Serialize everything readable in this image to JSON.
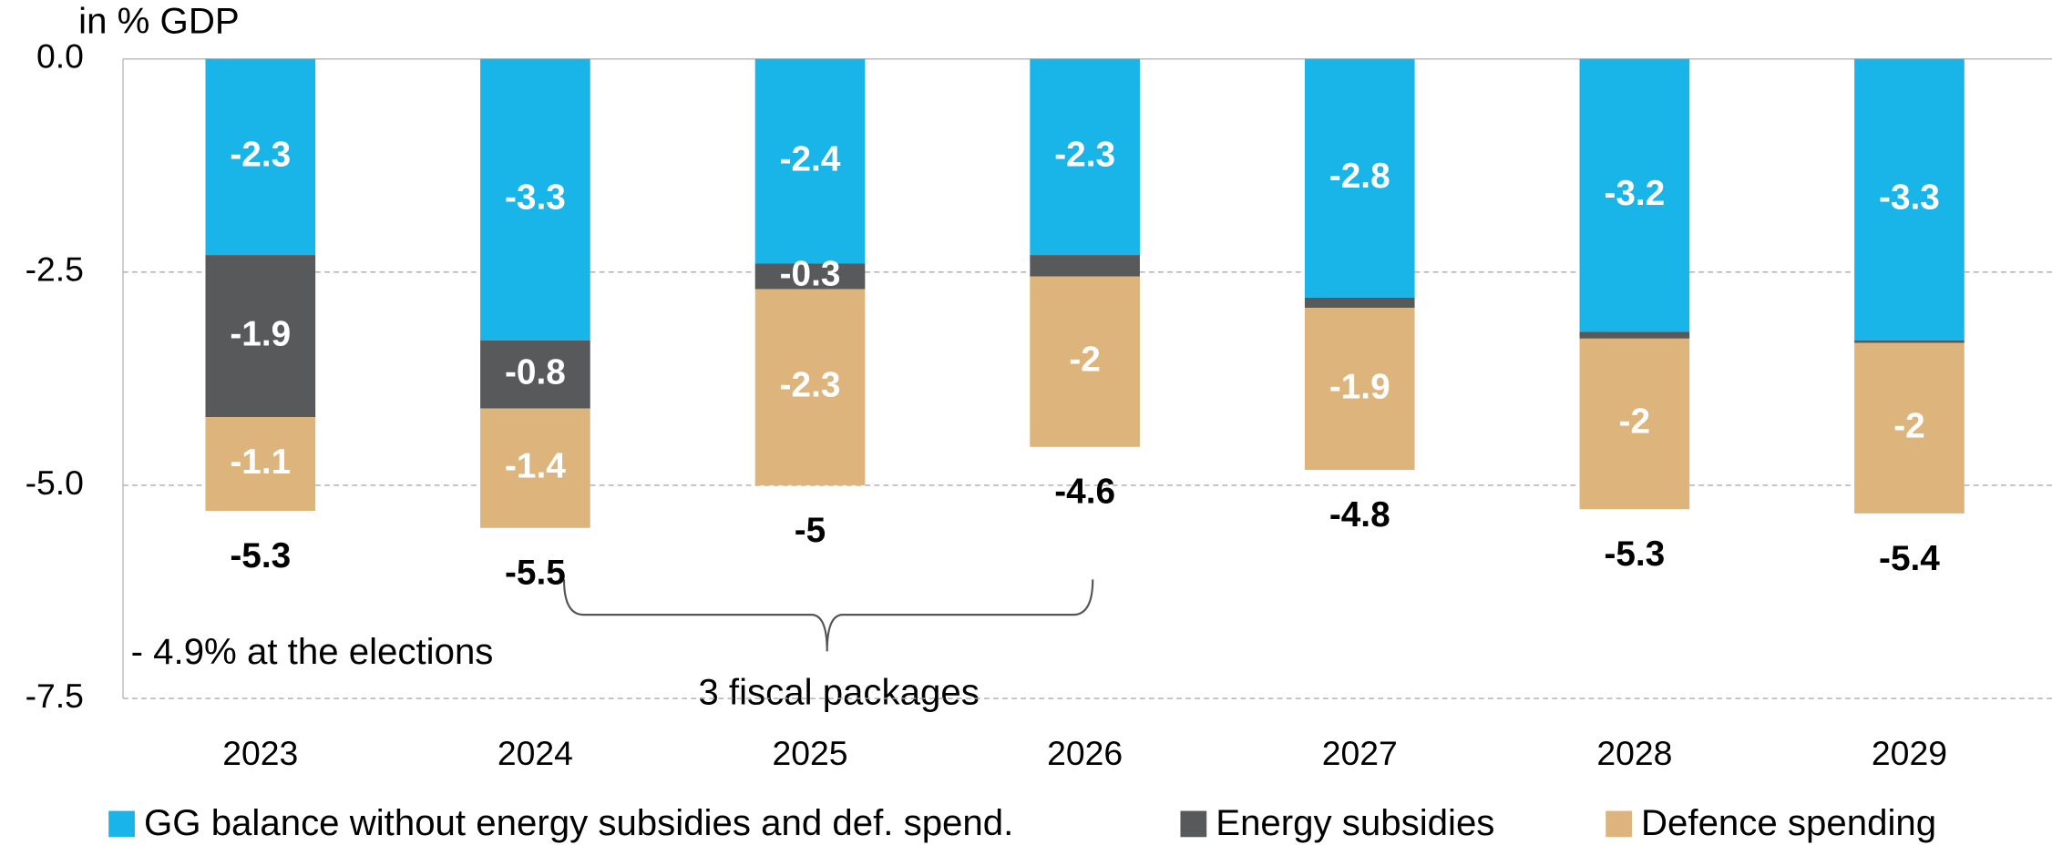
{
  "chart_data": {
    "type": "stacked_bar",
    "y_label": "in % GDP",
    "categories": [
      "2023",
      "2024",
      "2025",
      "2026",
      "2027",
      "2028",
      "2029"
    ],
    "series": [
      {
        "name": "GG balance without energy subsidies and def. spend.",
        "color": "#19b4e8",
        "values": [
          -2.3,
          -3.3,
          -2.4,
          -2.3,
          -2.8,
          -3.2,
          -3.3
        ]
      },
      {
        "name": "Energy subsidies",
        "color": "#58595b",
        "values": [
          -1.9,
          -0.8,
          -0.3,
          -0.25,
          -0.12,
          -0.08,
          -0.03
        ],
        "value_labels": [
          "-1.9",
          "-0.8",
          "-0.3",
          null,
          null,
          null,
          null
        ]
      },
      {
        "name": "Defence spending",
        "color": "#dcb47c",
        "values": [
          -1.1,
          -1.4,
          -2.3,
          -2.0,
          -1.9,
          -2.0,
          -2.0
        ]
      }
    ],
    "totals": [
      -5.3,
      -5.5,
      -5.0,
      -4.6,
      -4.8,
      -5.3,
      -5.4
    ],
    "ylim": [
      -7.5,
      0
    ],
    "yticks": [
      {
        "value": -7.5,
        "label": "-7.5"
      },
      {
        "value": -5,
        "label": "-5.0"
      },
      {
        "value": -2.5,
        "label": "-2.5"
      },
      {
        "value": 0,
        "label": "0.0"
      }
    ],
    "grid": true,
    "legend": "bottom",
    "annotations": [
      "- 4.9% at the elections",
      "3 fiscal packages"
    ]
  }
}
